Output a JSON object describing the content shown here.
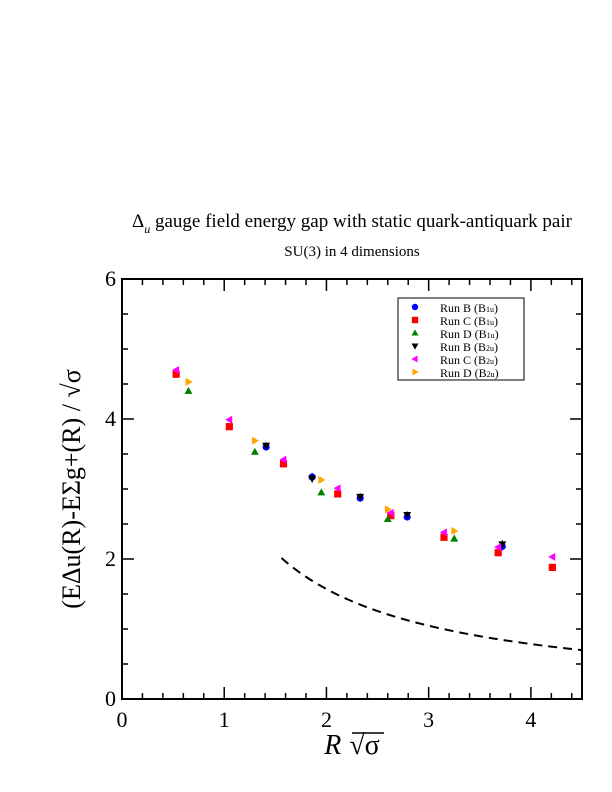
{
  "chart_data": {
    "type": "scatter",
    "title": "Δu gauge field energy gap with static quark-antiquark pair",
    "title_main": "Δ",
    "title_sub": "u",
    "title_rest": " gauge field energy gap with static quark-antiquark pair",
    "subtitle": "SU(3) in 4 dimensions",
    "xlabel": "R √σ",
    "xlabel_main": "R",
    "xlabel_sqrt": "√σ",
    "ylabel": "(EΔu(R)-EΣg+(R) / √σ",
    "xlim": [
      0,
      4.5
    ],
    "ylim": [
      0,
      6
    ],
    "xticks": [
      "0",
      "1",
      "2",
      "3",
      "4"
    ],
    "yticks": [
      "0",
      "2",
      "4",
      "6"
    ],
    "grid": false,
    "legend_placement": "top-right",
    "series": [
      {
        "name": "Run B (B1u)",
        "label_main": "Run B (B",
        "label_sub": "1u",
        "label_end": ")",
        "color": "#0000ff",
        "marker": "circle",
        "x": [
          1.41,
          1.86,
          2.33,
          2.79,
          3.72
        ],
        "y": [
          3.6,
          3.17,
          2.87,
          2.6,
          2.18
        ],
        "err": [
          0.05,
          0.06,
          0.05,
          0.05,
          0.06
        ]
      },
      {
        "name": "Run C (B1u)",
        "label_main": "Run C (B",
        "label_sub": "1u",
        "label_end": ")",
        "color": "#ff0000",
        "marker": "square",
        "x": [
          0.53,
          1.05,
          1.58,
          2.11,
          2.63,
          3.15,
          3.68,
          4.21
        ],
        "y": [
          4.64,
          3.89,
          3.36,
          2.93,
          2.62,
          2.31,
          2.09,
          1.88
        ],
        "err": [
          0.03,
          0.03,
          0.03,
          0.03,
          0.03,
          0.03,
          0.03,
          0.03
        ]
      },
      {
        "name": "Run D (B1u)",
        "label_main": "Run D (B",
        "label_sub": "1u",
        "label_end": ")",
        "color": "#008000",
        "marker": "triangle-up",
        "x": [
          0.65,
          1.3,
          1.95,
          2.6,
          3.25
        ],
        "y": [
          4.4,
          3.53,
          2.95,
          2.57,
          2.29
        ],
        "err": [
          0.04,
          0.04,
          0.04,
          0.04,
          0.04
        ]
      },
      {
        "name": "Run B (B2u)",
        "label_main": "Run B (B",
        "label_sub": "2u",
        "label_end": ")",
        "color": "#000000",
        "marker": "triangle-down",
        "x": [
          1.41,
          1.86,
          2.33,
          2.79,
          3.72
        ],
        "y": [
          3.62,
          3.15,
          2.89,
          2.63,
          2.21
        ],
        "err": [
          0.05,
          0.06,
          0.05,
          0.05,
          0.06
        ]
      },
      {
        "name": "Run C (B2u)",
        "label_main": "Run C (B",
        "label_sub": "2u",
        "label_end": ")",
        "color": "#ff00ff",
        "marker": "triangle-left",
        "x": [
          0.53,
          1.05,
          1.58,
          2.11,
          2.63,
          3.15,
          3.68,
          4.21
        ],
        "y": [
          4.7,
          3.99,
          3.42,
          3.01,
          2.66,
          2.38,
          2.17,
          2.03
        ],
        "err": [
          0.03,
          0.03,
          0.03,
          0.03,
          0.03,
          0.03,
          0.03,
          0.03
        ]
      },
      {
        "name": "Run D (B2u)",
        "label_main": "Run D (B",
        "label_sub": "2u",
        "label_end": ")",
        "color": "#ffa500",
        "marker": "triangle-right",
        "x": [
          0.65,
          1.3,
          1.95,
          2.6,
          3.25
        ],
        "y": [
          4.53,
          3.69,
          3.13,
          2.71,
          2.4
        ],
        "err": [
          0.04,
          0.04,
          0.04,
          0.04,
          0.04
        ]
      }
    ],
    "dashed_curve": {
      "formula": "π / (R√σ)",
      "x_from": 1.56,
      "x_to": 4.5,
      "color": "#000000"
    }
  }
}
